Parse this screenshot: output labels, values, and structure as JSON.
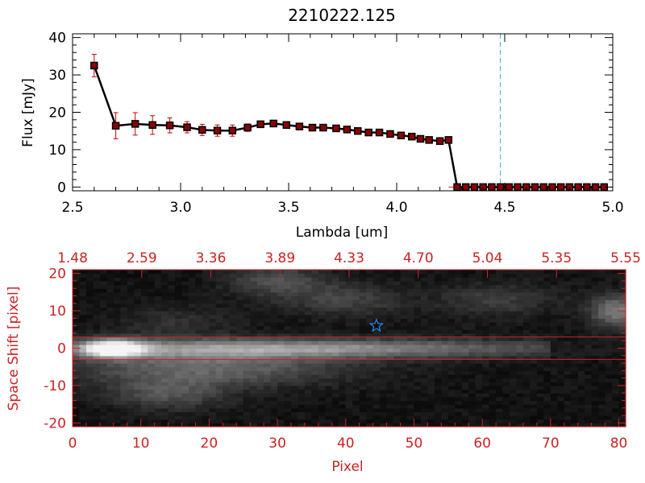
{
  "chart_data": [
    {
      "type": "line",
      "title": "2210222.125",
      "xlabel": "Lambda [um]",
      "ylabel": "Flux [mJy]",
      "xlim": [
        2.5,
        5.0
      ],
      "ylim": [
        -1,
        41
      ],
      "x_ticks": [
        "2.5",
        "3.0",
        "3.5",
        "4.0",
        "4.5",
        "5.0"
      ],
      "y_ticks": [
        "0",
        "10",
        "20",
        "30",
        "40"
      ],
      "marker_line": 4.48,
      "colors": {
        "line": "#000000",
        "marker": "#8b0000",
        "error": "#cc0000",
        "marker_line": "#3aa7c9"
      },
      "series": [
        {
          "x": [
            2.6,
            2.7,
            2.79,
            2.87,
            2.95,
            3.03,
            3.1,
            3.17,
            3.24,
            3.31,
            3.37,
            3.43,
            3.49,
            3.55,
            3.61,
            3.66,
            3.72,
            3.77,
            3.82,
            3.87,
            3.92,
            3.97,
            4.02,
            4.07,
            4.11,
            4.15,
            4.2,
            4.24,
            4.28,
            4.32,
            4.36,
            4.4,
            4.44,
            4.48,
            4.52,
            4.56,
            4.6,
            4.64,
            4.68,
            4.72,
            4.76,
            4.8,
            4.84,
            4.88,
            4.92,
            4.96
          ],
          "y": [
            32.5,
            16.4,
            16.9,
            16.6,
            16.5,
            16.0,
            15.3,
            15.1,
            15.1,
            15.9,
            16.8,
            17.0,
            16.6,
            16.2,
            15.9,
            15.9,
            15.7,
            15.4,
            15.0,
            14.6,
            14.6,
            14.2,
            13.8,
            13.5,
            12.9,
            12.6,
            12.3,
            12.6,
            0,
            0,
            0,
            0,
            0,
            0,
            0,
            0,
            0,
            0,
            0,
            0,
            0,
            0,
            0,
            0,
            0,
            0
          ],
          "err": [
            3.0,
            3.5,
            3.0,
            2.5,
            2.0,
            1.5,
            1.5,
            1.5,
            1.5,
            1.0,
            0.8,
            0.8,
            0.8,
            0.6,
            0.6,
            0.6,
            0.5,
            0.5,
            0.5,
            0.5,
            0.5,
            0.5,
            0.5,
            0.5,
            0.5,
            0.5,
            0.5,
            0.5,
            0.3,
            0.3,
            0.3,
            0.3,
            0.3,
            0.3,
            0.3,
            0.3,
            0.3,
            0.3,
            0.3,
            0.3,
            0.3,
            0.3,
            0.3,
            0.3,
            0.3,
            0.3
          ]
        }
      ]
    },
    {
      "type": "heatmap",
      "xlabel": "Pixel",
      "ylabel": "Space Shift [pixel]",
      "xlim": [
        0,
        81
      ],
      "ylim": [
        -21,
        21
      ],
      "x_ticks": [
        "0",
        "10",
        "20",
        "30",
        "40",
        "50",
        "60",
        "70",
        "80"
      ],
      "y_ticks": [
        "-20",
        "-10",
        "0",
        "10",
        "20"
      ],
      "top_axis_ticks": [
        "1.48",
        "2.59",
        "3.36",
        "3.89",
        "4.33",
        "4.70",
        "5.04",
        "5.35",
        "5.55"
      ],
      "aperture_rows": [
        -3,
        3
      ],
      "star_marker": {
        "x": 44.5,
        "y": 6
      },
      "colors": {
        "axis": "#cc2222",
        "star": "#2288ee",
        "aperture": "#cc2222"
      }
    }
  ]
}
